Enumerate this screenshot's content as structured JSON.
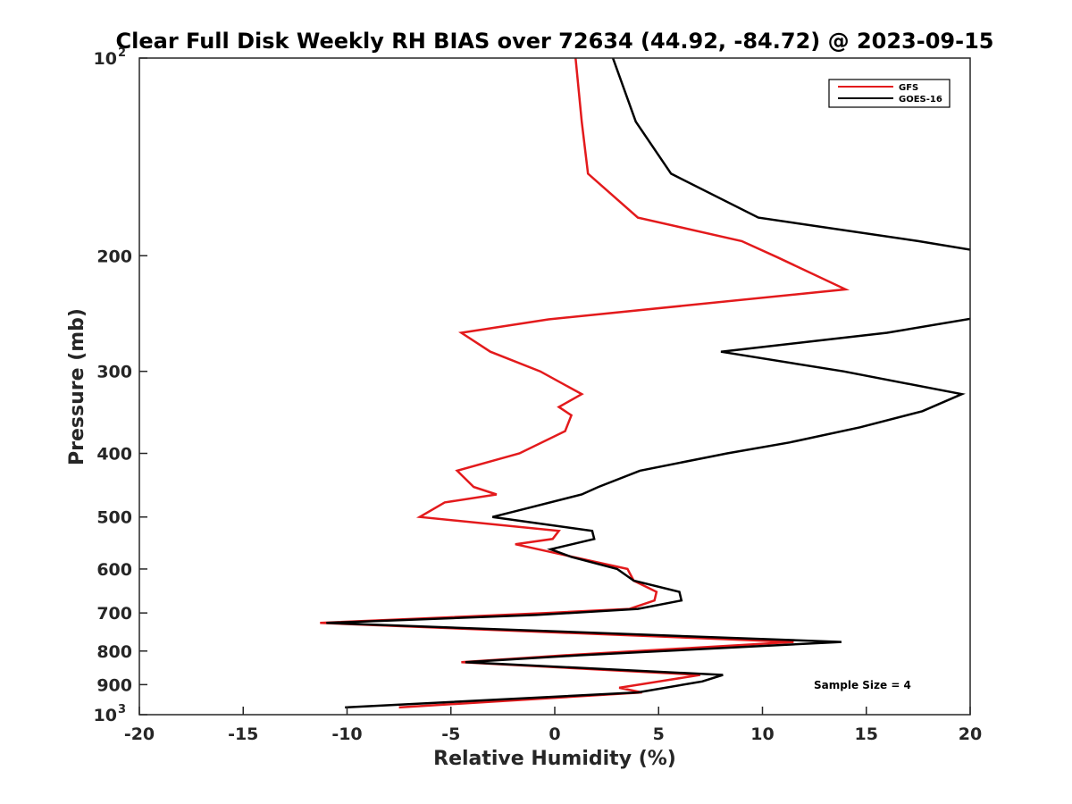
{
  "chart_data": {
    "type": "line",
    "title": "Clear Full Disk Weekly RH BIAS over 72634 (44.92, -84.72) @ 2023-09-15",
    "xlabel": "Relative Humidity (%)",
    "ylabel": "Pressure (mb)",
    "xlim": [
      -20,
      20
    ],
    "ylim": [
      100,
      1000
    ],
    "yscale": "log",
    "yreversed": true,
    "x_ticks": [
      {
        "value": -20,
        "label": "-20"
      },
      {
        "value": -15,
        "label": "-15"
      },
      {
        "value": -10,
        "label": "-10"
      },
      {
        "value": -5,
        "label": "-5"
      },
      {
        "value": 0,
        "label": "0"
      },
      {
        "value": 5,
        "label": "5"
      },
      {
        "value": 10,
        "label": "10"
      },
      {
        "value": 15,
        "label": "15"
      },
      {
        "value": 20,
        "label": "20"
      }
    ],
    "y_ticks": [
      {
        "value": 200,
        "label": "200"
      },
      {
        "value": 300,
        "label": "300"
      },
      {
        "value": 400,
        "label": "400"
      },
      {
        "value": 500,
        "label": "500"
      },
      {
        "value": 600,
        "label": "600"
      },
      {
        "value": 700,
        "label": "700"
      },
      {
        "value": 800,
        "label": "800"
      },
      {
        "value": 900,
        "label": "900"
      }
    ],
    "y_exp_ticks": [
      {
        "value": 100,
        "base": "10",
        "exp": "2"
      },
      {
        "value": 1000,
        "base": "10",
        "exp": "3"
      }
    ],
    "legend_position": "top-right",
    "annotation": "Sample Size = 4",
    "series": [
      {
        "name": "GFS",
        "color": "#e31a1c",
        "points": [
          [
            1.0,
            100
          ],
          [
            1.3,
            125
          ],
          [
            1.6,
            150
          ],
          [
            4.0,
            175
          ],
          [
            9.0,
            190
          ],
          [
            10.7,
            201
          ],
          [
            14.0,
            225
          ],
          [
            -0.3,
            250
          ],
          [
            -4.5,
            262
          ],
          [
            -3.1,
            280
          ],
          [
            -0.7,
            300
          ],
          [
            1.3,
            325
          ],
          [
            0.2,
            340
          ],
          [
            0.8,
            350
          ],
          [
            0.5,
            370
          ],
          [
            -1.7,
            400
          ],
          [
            -4.7,
            425
          ],
          [
            -3.9,
            450
          ],
          [
            -2.8,
            462
          ],
          [
            -5.3,
            475
          ],
          [
            -6.5,
            500
          ],
          [
            0.2,
            525
          ],
          [
            -0.1,
            540
          ],
          [
            -1.9,
            550
          ],
          [
            3.5,
            600
          ],
          [
            3.8,
            625
          ],
          [
            4.9,
            650
          ],
          [
            4.8,
            670
          ],
          [
            3.6,
            690
          ],
          [
            -0.3,
            700
          ],
          [
            -11.3,
            725
          ],
          [
            11.5,
            775
          ],
          [
            0.5,
            812
          ],
          [
            -4.5,
            832
          ],
          [
            7.0,
            870
          ],
          [
            3.1,
            910
          ],
          [
            4.2,
            925
          ],
          [
            -7.5,
            975
          ]
        ]
      },
      {
        "name": "GOES-16",
        "color": "#000000",
        "points": [
          [
            2.8,
            100
          ],
          [
            3.9,
            125
          ],
          [
            5.6,
            150
          ],
          [
            9.8,
            175
          ],
          [
            17.5,
            190
          ],
          [
            20.5,
            197
          ],
          [
            20.5,
            248
          ],
          [
            16.0,
            262
          ],
          [
            8.0,
            280
          ],
          [
            13.9,
            300
          ],
          [
            19.6,
            325
          ],
          [
            17.7,
            345
          ],
          [
            14.7,
            365
          ],
          [
            11.3,
            385
          ],
          [
            8.3,
            400
          ],
          [
            4.1,
            425
          ],
          [
            2.1,
            450
          ],
          [
            1.3,
            462
          ],
          [
            -1.9,
            490
          ],
          [
            -3.0,
            500
          ],
          [
            1.8,
            525
          ],
          [
            1.9,
            540
          ],
          [
            -0.2,
            560
          ],
          [
            0.8,
            575
          ],
          [
            3.0,
            600
          ],
          [
            3.8,
            625
          ],
          [
            6.0,
            650
          ],
          [
            6.1,
            670
          ],
          [
            4.0,
            690
          ],
          [
            -0.9,
            705
          ],
          [
            -11.0,
            725
          ],
          [
            13.8,
            775
          ],
          [
            1.2,
            812
          ],
          [
            -4.3,
            832
          ],
          [
            8.1,
            870
          ],
          [
            7.1,
            890
          ],
          [
            4.0,
            925
          ],
          [
            -10.1,
            975
          ]
        ]
      }
    ]
  }
}
